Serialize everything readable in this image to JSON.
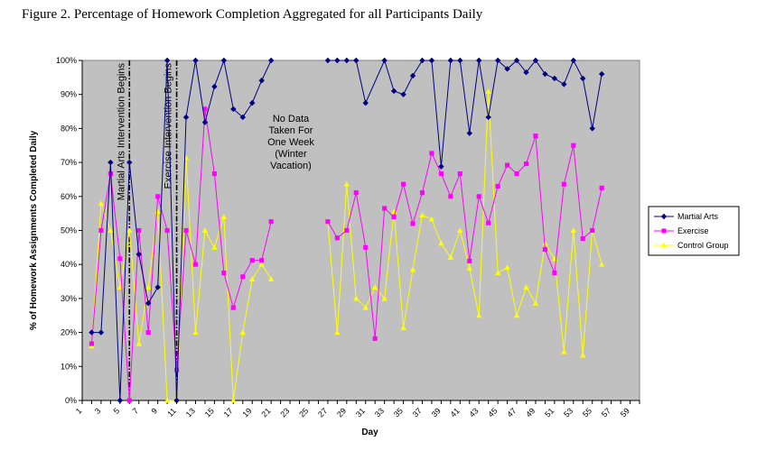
{
  "figure": {
    "title": "Figure 2. Percentage of Homework Completion Aggregated for all Participants Daily"
  },
  "chart_data": {
    "type": "line",
    "xlabel": "Day",
    "ylabel": "% of Homework Assignments Completed Daily",
    "xlim": [
      1,
      60
    ],
    "ylim": [
      0,
      100
    ],
    "x_tick_labels": [
      "1",
      "3",
      "5",
      "7",
      "9",
      "11",
      "13",
      "15",
      "17",
      "19",
      "21",
      "23",
      "25",
      "27",
      "29",
      "31",
      "33",
      "35",
      "37",
      "39",
      "41",
      "43",
      "45",
      "47",
      "49",
      "51",
      "53",
      "55",
      "57",
      "59"
    ],
    "y_tick_labels": [
      "0%",
      "10%",
      "20%",
      "30%",
      "40%",
      "50%",
      "60%",
      "70%",
      "80%",
      "90%",
      "100%"
    ],
    "grid": false,
    "legend_position": "right",
    "colors": {
      "plot_background": "#c0c0c0",
      "martial": "#000080",
      "exercise": "#ff00ff",
      "control": "#ffff00"
    },
    "annotations": {
      "martial_line": {
        "x": 6,
        "label": "Martial Arts Intervention Begins"
      },
      "exercise_line": {
        "x": 11,
        "label": "Exercise Intervention Begins"
      },
      "no_data_note": [
        "No Data",
        "Taken For",
        "One Week",
        "(Winter",
        "Vacation)"
      ]
    },
    "series": [
      {
        "name": "Martial Arts",
        "color": "#000080",
        "marker": "diamond",
        "points": [
          [
            2,
            20
          ],
          [
            3,
            20
          ],
          [
            4,
            70
          ],
          [
            5,
            0
          ],
          [
            6,
            70
          ],
          [
            7,
            43
          ],
          [
            8,
            28.6
          ],
          [
            9,
            33.3
          ],
          [
            10,
            100
          ],
          [
            11,
            0
          ],
          [
            12,
            83.3
          ],
          [
            13,
            100
          ],
          [
            14,
            81.8
          ],
          [
            15,
            92.3
          ],
          [
            16,
            100
          ],
          [
            17,
            85.7
          ],
          [
            18,
            83.3
          ],
          [
            19,
            87.5
          ],
          [
            20,
            94.1
          ],
          [
            21,
            100
          ],
          [
            27,
            100
          ],
          [
            28,
            100
          ],
          [
            29,
            100
          ],
          [
            30,
            100
          ],
          [
            31,
            87.5
          ],
          [
            33,
            100
          ],
          [
            34,
            91
          ],
          [
            35,
            90
          ],
          [
            36,
            95.5
          ],
          [
            37,
            100
          ],
          [
            38,
            100
          ],
          [
            39,
            68.8
          ],
          [
            40,
            100
          ],
          [
            41,
            100
          ],
          [
            42,
            78.6
          ],
          [
            43,
            100
          ],
          [
            44,
            83.3
          ],
          [
            45,
            100
          ],
          [
            46,
            97.5
          ],
          [
            47,
            100
          ],
          [
            48,
            96.5
          ],
          [
            49,
            100
          ],
          [
            50,
            96
          ],
          [
            51,
            94.7
          ],
          [
            52,
            93
          ],
          [
            53,
            100
          ],
          [
            54,
            94.7
          ],
          [
            55,
            80
          ],
          [
            56,
            96
          ]
        ]
      },
      {
        "name": "Exercise",
        "color": "#ff00ff",
        "marker": "square",
        "points": [
          [
            2,
            16.7
          ],
          [
            3,
            50
          ],
          [
            4,
            66.7
          ],
          [
            5,
            41.7
          ],
          [
            6,
            0
          ],
          [
            7,
            50
          ],
          [
            8,
            20
          ],
          [
            9,
            60
          ],
          [
            10,
            50
          ],
          [
            11,
            9
          ],
          [
            12,
            50
          ],
          [
            13,
            40
          ],
          [
            14,
            85.7
          ],
          [
            15,
            66.7
          ],
          [
            16,
            37.5
          ],
          [
            17,
            27.3
          ],
          [
            18,
            36.4
          ],
          [
            19,
            41.2
          ],
          [
            20,
            41.2
          ],
          [
            21,
            52.6
          ],
          [
            27,
            52.6
          ],
          [
            28,
            47.8
          ],
          [
            29,
            50
          ],
          [
            30,
            61.1
          ],
          [
            31,
            45
          ],
          [
            32,
            18.2
          ],
          [
            33,
            56.5
          ],
          [
            34,
            54
          ],
          [
            35,
            63.6
          ],
          [
            36,
            52
          ],
          [
            37,
            61.1
          ],
          [
            38,
            72.7
          ],
          [
            39,
            66.7
          ],
          [
            40,
            60
          ],
          [
            41,
            66.7
          ],
          [
            42,
            41
          ],
          [
            43,
            60
          ],
          [
            44,
            52.2
          ],
          [
            45,
            63
          ],
          [
            46,
            69.2
          ],
          [
            47,
            66.7
          ],
          [
            48,
            69.6
          ],
          [
            49,
            77.8
          ],
          [
            50,
            44.4
          ],
          [
            51,
            37.5
          ],
          [
            52,
            63.6
          ],
          [
            53,
            75
          ],
          [
            54,
            47.6
          ],
          [
            55,
            50
          ],
          [
            56,
            62.5
          ]
        ]
      },
      {
        "name": "Control Group",
        "color": "#ffff00",
        "marker": "triangle",
        "points": [
          [
            2,
            16
          ],
          [
            3,
            58
          ],
          [
            4,
            50
          ],
          [
            5,
            33.3
          ],
          [
            6,
            50
          ],
          [
            7,
            16.7
          ],
          [
            8,
            33.3
          ],
          [
            9,
            55.6
          ],
          [
            10,
            0
          ],
          [
            11,
            0
          ],
          [
            12,
            71.4
          ],
          [
            13,
            20
          ],
          [
            14,
            50
          ],
          [
            15,
            45
          ],
          [
            16,
            54
          ],
          [
            17,
            0
          ],
          [
            18,
            20
          ],
          [
            19,
            35.7
          ],
          [
            20,
            40
          ],
          [
            21,
            35.7
          ],
          [
            27,
            52.6
          ],
          [
            28,
            20
          ],
          [
            29,
            63.6
          ],
          [
            30,
            30
          ],
          [
            31,
            27.3
          ],
          [
            32,
            33.3
          ],
          [
            33,
            30
          ],
          [
            34,
            55.6
          ],
          [
            35,
            21.4
          ],
          [
            36,
            38.5
          ],
          [
            37,
            54.5
          ],
          [
            38,
            53.3
          ],
          [
            39,
            46.2
          ],
          [
            40,
            42.1
          ],
          [
            41,
            50
          ],
          [
            42,
            38.9
          ],
          [
            43,
            25
          ],
          [
            44,
            90.9
          ],
          [
            45,
            37.5
          ],
          [
            46,
            39.1
          ],
          [
            47,
            25
          ],
          [
            48,
            33.3
          ],
          [
            49,
            28.6
          ],
          [
            50,
            46.2
          ],
          [
            51,
            41.7
          ],
          [
            52,
            14.3
          ],
          [
            53,
            50
          ],
          [
            54,
            13.3
          ],
          [
            55,
            50
          ],
          [
            56,
            40
          ]
        ]
      }
    ]
  }
}
